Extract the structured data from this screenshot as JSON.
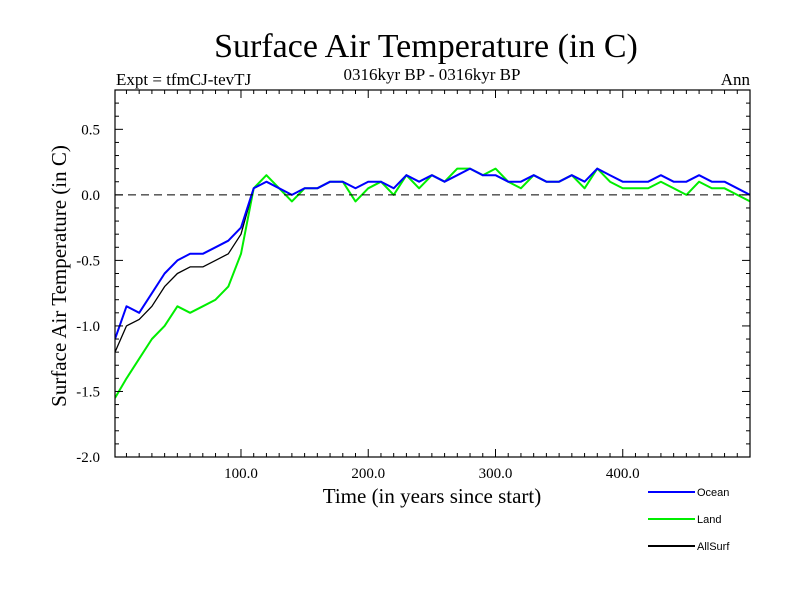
{
  "chart_data": {
    "type": "line",
    "title": "Surface Air Temperature (in C)",
    "subtitle_left": "Expt = tfmCJ-tevTJ",
    "subtitle_center": "0316kyr BP - 0316kyr BP",
    "subtitle_right": "Ann",
    "xlabel": "Time (in years since start)",
    "ylabel": "Surface Air Temperature (in C)",
    "xlim": [
      1,
      500
    ],
    "ylim": [
      -2.0,
      0.8
    ],
    "xticks": [
      100,
      200,
      300,
      400
    ],
    "xtick_labels": [
      "100.0",
      "200.0",
      "300.0",
      "400.0"
    ],
    "yticks": [
      -2.0,
      -1.5,
      -1.0,
      -0.5,
      0.0,
      0.5
    ],
    "ytick_labels": [
      "-2.0",
      "-1.5",
      "-1.0",
      "-0.5",
      "0.0",
      "0.5"
    ],
    "reference_line": 0.0,
    "x": [
      1,
      10,
      20,
      30,
      40,
      50,
      60,
      70,
      80,
      90,
      100,
      110,
      120,
      130,
      140,
      150,
      160,
      170,
      180,
      190,
      200,
      210,
      220,
      230,
      240,
      250,
      260,
      270,
      280,
      290,
      300,
      310,
      320,
      330,
      340,
      350,
      360,
      370,
      380,
      390,
      400,
      410,
      420,
      430,
      440,
      450,
      460,
      470,
      480,
      490,
      500
    ],
    "series": [
      {
        "name": "Ocean",
        "color": "#0000ff",
        "values": [
          -1.1,
          -0.85,
          -0.9,
          -0.75,
          -0.6,
          -0.5,
          -0.45,
          -0.45,
          -0.4,
          -0.35,
          -0.25,
          0.05,
          0.1,
          0.05,
          0.0,
          0.05,
          0.05,
          0.1,
          0.1,
          0.05,
          0.1,
          0.1,
          0.05,
          0.15,
          0.1,
          0.15,
          0.1,
          0.15,
          0.2,
          0.15,
          0.15,
          0.1,
          0.1,
          0.15,
          0.1,
          0.1,
          0.15,
          0.1,
          0.2,
          0.15,
          0.1,
          0.1,
          0.1,
          0.15,
          0.1,
          0.1,
          0.15,
          0.1,
          0.1,
          0.05,
          0.0
        ]
      },
      {
        "name": "Land",
        "color": "#00ee00",
        "values": [
          -1.55,
          -1.4,
          -1.25,
          -1.1,
          -1.0,
          -0.85,
          -0.9,
          -0.85,
          -0.8,
          -0.7,
          -0.45,
          0.05,
          0.15,
          0.05,
          -0.05,
          0.05,
          0.05,
          0.1,
          0.1,
          -0.05,
          0.05,
          0.1,
          0.0,
          0.15,
          0.05,
          0.15,
          0.1,
          0.2,
          0.2,
          0.15,
          0.2,
          0.1,
          0.05,
          0.15,
          0.1,
          0.1,
          0.15,
          0.05,
          0.2,
          0.1,
          0.05,
          0.05,
          0.05,
          0.1,
          0.05,
          0.0,
          0.1,
          0.05,
          0.05,
          0.0,
          -0.05
        ]
      },
      {
        "name": "AllSurf",
        "color": "#000000",
        "values": [
          -1.2,
          -1.0,
          -0.95,
          -0.85,
          -0.7,
          -0.6,
          -0.55,
          -0.55,
          -0.5,
          -0.45,
          -0.3,
          0.05,
          0.1,
          0.05,
          0.0,
          0.05,
          0.05,
          0.1,
          0.1,
          0.05,
          0.1,
          0.1,
          0.05,
          0.15,
          0.1,
          0.15,
          0.1,
          0.15,
          0.2,
          0.15,
          0.15,
          0.1,
          0.1,
          0.15,
          0.1,
          0.1,
          0.15,
          0.1,
          0.2,
          0.15,
          0.1,
          0.1,
          0.1,
          0.15,
          0.1,
          0.1,
          0.15,
          0.1,
          0.1,
          0.05,
          0.0
        ]
      }
    ]
  }
}
